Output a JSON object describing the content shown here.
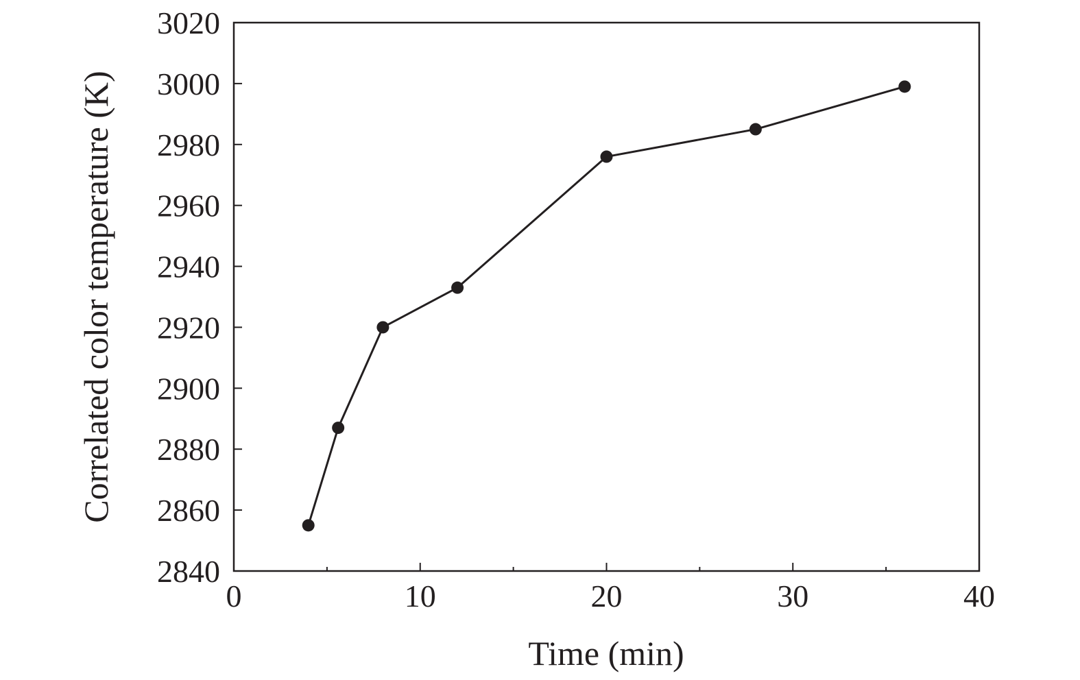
{
  "chart_data": {
    "type": "line",
    "xlabel": "Time (min)",
    "ylabel": "Correlated color temperature (K)",
    "xlim": [
      0,
      40
    ],
    "ylim": [
      2840,
      3020
    ],
    "xticks": [
      "0",
      "10",
      "20",
      "30",
      "40"
    ],
    "yticks": [
      "2840",
      "2860",
      "2880",
      "2900",
      "2920",
      "2940",
      "2960",
      "2980",
      "3000",
      "3020"
    ],
    "grid": false,
    "series": [
      {
        "x": [
          4,
          5.6,
          8,
          12,
          20,
          28,
          36
        ],
        "y": [
          2855,
          2887,
          2920,
          2933,
          2976,
          2985,
          2999
        ],
        "color": "#231f20",
        "marker": "circle"
      }
    ]
  }
}
